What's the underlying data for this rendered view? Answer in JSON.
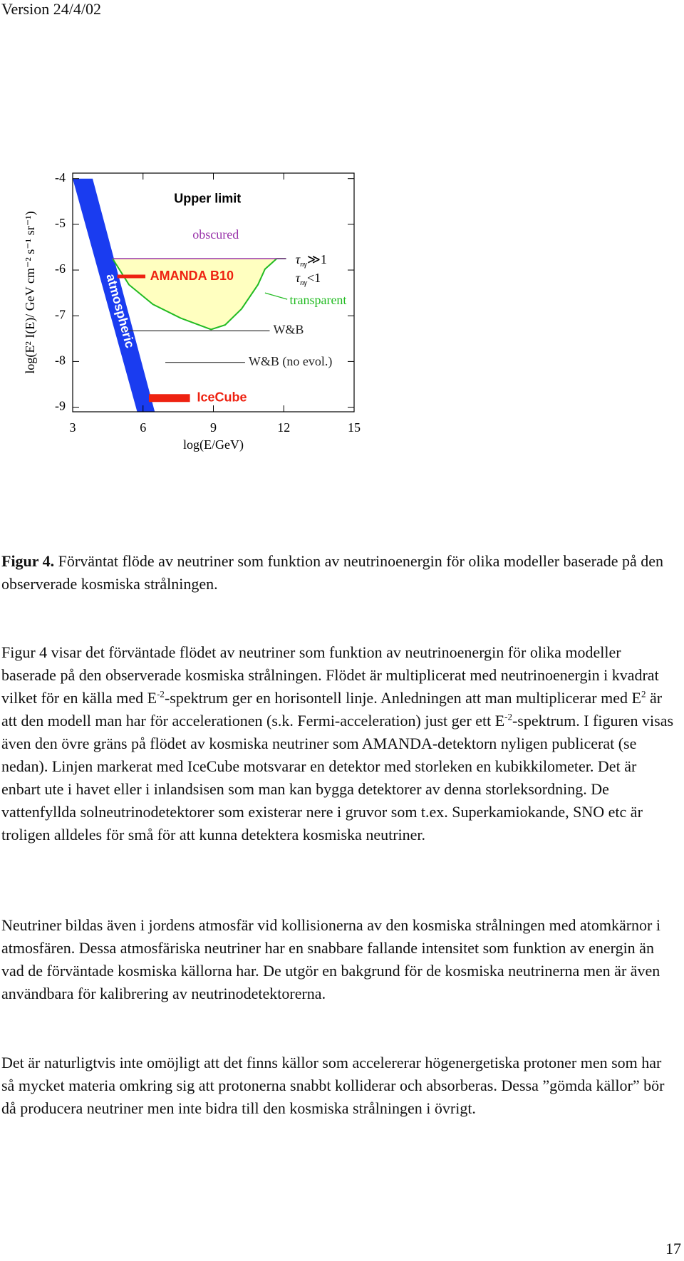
{
  "header": {
    "version": "Version 24/4/02"
  },
  "chart_data": {
    "type": "line",
    "xlabel": "log(E/GeV)",
    "ylabel": "log(E² I(E)/ GeV cm⁻² s⁻¹ sr⁻¹)",
    "xlim": [
      3,
      15
    ],
    "ylim": [
      -9.1,
      -3.88
    ],
    "xticks": [
      3,
      6,
      9,
      12,
      15
    ],
    "yticks": [
      -4,
      -5,
      -6,
      -7,
      -8,
      -9
    ],
    "annotations": {
      "upper_limit": "Upper limit",
      "tau_thick": {
        "symbol": "τ",
        "sub": "nγ",
        "rest": "≫1"
      },
      "tau_thin": {
        "symbol": "τ",
        "sub": "nγ",
        "rest": "<1"
      }
    },
    "series": [
      {
        "name": "atmospheric",
        "color": "#1a3cf0",
        "x": [
          3,
          3.85,
          6.5,
          5.75
        ],
        "values": [
          -4,
          -4,
          -9.1,
          -9.1
        ]
      },
      {
        "name": "transparent",
        "color": "#22bb22",
        "x": [
          4.7,
          5.4,
          6.42,
          7.6,
          8.9,
          9.5,
          10.2,
          10.9,
          11.2,
          11.7,
          12.1
        ],
        "values": [
          -5.75,
          -6.32,
          -6.75,
          -7.05,
          -7.3,
          -7.2,
          -6.85,
          -6.32,
          -5.98,
          -5.75,
          -5.75
        ]
      },
      {
        "name": "obscured",
        "color": "#9933aa",
        "x": [
          4.7,
          12.1
        ],
        "values": [
          -5.75,
          -5.75
        ]
      },
      {
        "name": "W&B",
        "color": "#333333",
        "x": [
          5.05,
          11.4
        ],
        "values": [
          -7.33,
          -7.33
        ]
      },
      {
        "name": "W&B (no evol.)",
        "color": "#333333",
        "x": [
          6.95,
          10.35
        ],
        "values": [
          -8.02,
          -8.02
        ]
      },
      {
        "name": "AMANDA B10",
        "color": "#ee2211",
        "x": [
          4.9,
          6.1
        ],
        "values": [
          -6.14,
          -6.14
        ]
      },
      {
        "name": "IceCube",
        "color": "#ee2211",
        "x": [
          6.25,
          8.0
        ],
        "values": [
          -8.8,
          -8.8
        ]
      }
    ]
  },
  "caption": {
    "label": "Figur 4.",
    "text": "Förväntat flöde av neutriner som funktion av neutrinoenergin för olika modeller baserade på den observerade kosmiska strålningen."
  },
  "paragraphs": [
    [
      "Figur 4 visar det förväntade flödet av neutriner som funktion av neutrinoenergin för olika modeller baserade på den observerade kosmiska strålningen. Flödet är multiplicerat med neutrinoenergin i kvadrat vilket för en källa med E",
      {
        "sup": "-2"
      },
      "-spektrum ger en horisontell linje. Anledningen att man multiplicerar med E",
      {
        "sup": "2"
      },
      " är att den modell man har för accelerationen (s.k. Fermi-acceleration) just ger ett E",
      {
        "sup": "-2"
      },
      "-spektrum. I figuren visas även den övre gräns på flödet av kosmiska neutriner som AMANDA-detektorn nyligen publicerat (se nedan). Linjen markerat med IceCube motsvarar en detektor med storleken en kubikkilometer. Det är enbart ute i havet eller i inlandsisen som man kan bygga detektorer av denna storleksordning. De vattenfyllda solneutrinodetektorer som existerar nere i gruvor som t.ex. Superkamiokande, SNO etc är troligen alldeles för små för att kunna detektera kosmiska neutriner."
    ],
    [
      "Neutriner bildas även i jordens atmosfär vid kollisionerna av den kosmiska strålningen med atomkärnor i atmosfären. Dessa atmosfäriska neutriner har en snabbare fallande intensitet som funktion av energin än vad de förväntade kosmiska källorna har.  De utgör en bakgrund för de kosmiska neutrinerna men är även användbara för kalibrering av neutrinodetektorerna."
    ],
    [
      "Det är naturligtvis inte omöjligt att det finns källor som accelererar högenergetiska protoner men som har så mycket materia omkring sig att protonerna snabbt kolliderar och absorberas. Dessa ”gömda källor” bör då producera neutriner men inte bidra till den kosmiska strålningen i övrigt."
    ]
  ],
  "page_number": "17"
}
